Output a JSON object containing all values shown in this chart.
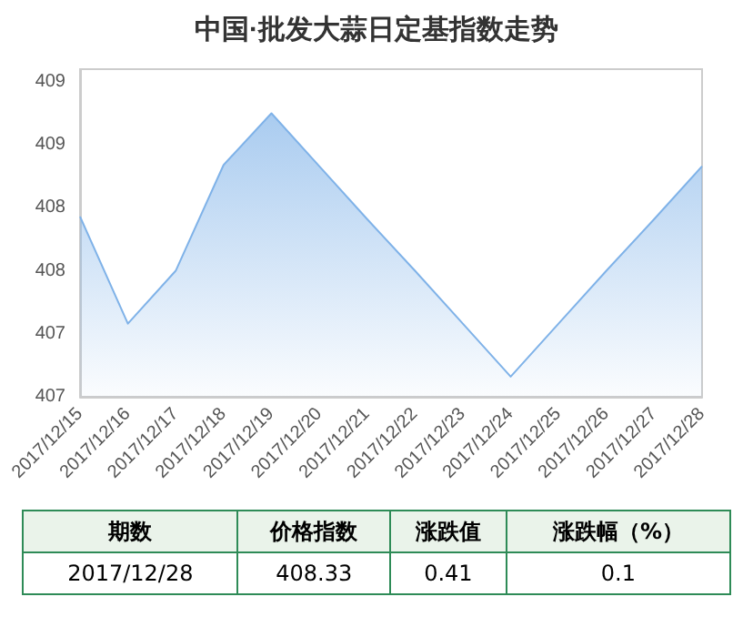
{
  "chart_data": {
    "type": "area",
    "title": "中国·批发大蒜日定基指数走势",
    "categories": [
      "2017/12/15",
      "2017/12/16",
      "2017/12/17",
      "2017/12/18",
      "2017/12/19",
      "2017/12/20",
      "2017/12/21",
      "2017/12/22",
      "2017/12/23",
      "2017/12/24",
      "2017/12/25",
      "2017/12/26",
      "2017/12/27",
      "2017/12/28"
    ],
    "series": [
      {
        "color": "#7fb2e8",
        "values": [
          407.93,
          407.08,
          407.5,
          408.34,
          408.75,
          408.33,
          407.91,
          407.5,
          407.08,
          406.66,
          407.08,
          407.5,
          407.91,
          408.33
        ]
      }
    ],
    "ylim": [
      406.5,
      409.1
    ],
    "yticks": [
      {
        "value": 406.5,
        "label": "407"
      },
      {
        "value": 407,
        "label": "407"
      },
      {
        "value": 407.5,
        "label": "408"
      },
      {
        "value": 408,
        "label": "408"
      },
      {
        "value": 408.5,
        "label": "409"
      },
      {
        "value": 409,
        "label": "409"
      }
    ],
    "marker": "none",
    "annotations": [
      "期数",
      "价格指数",
      "涨跌值",
      "涨跌幅（%）",
      "2017/12/28",
      "408.33",
      "0.41",
      "0.1"
    ]
  }
}
